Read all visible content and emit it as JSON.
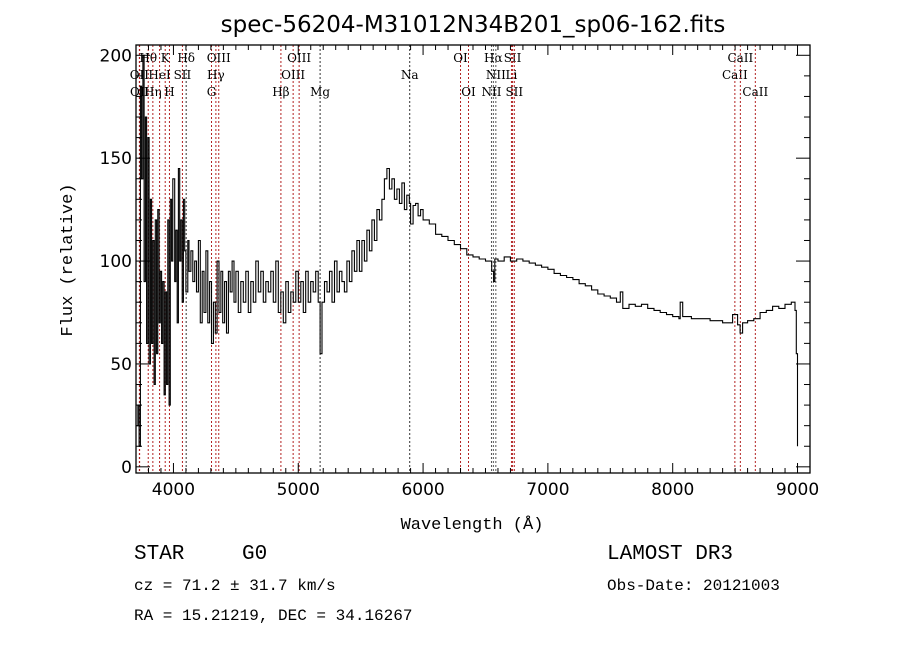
{
  "chart_data": {
    "type": "line",
    "title": "spec-56204-M31012N34B201_sp06-162.fits",
    "xlabel": "Wavelength (Å)",
    "ylabel": "Flux (relative)",
    "xlim": [
      3700,
      9100
    ],
    "ylim": [
      -3,
      205
    ],
    "xticks": [
      4000,
      5000,
      6000,
      7000,
      8000,
      9000
    ],
    "yticks": [
      0,
      50,
      100,
      150,
      200
    ],
    "grid": false,
    "spectrum": [
      [
        3705,
        20
      ],
      [
        3715,
        30
      ],
      [
        3725,
        10
      ],
      [
        3735,
        185
      ],
      [
        3745,
        140
      ],
      [
        3755,
        200
      ],
      [
        3765,
        90
      ],
      [
        3775,
        170
      ],
      [
        3785,
        60
      ],
      [
        3795,
        160
      ],
      [
        3805,
        50
      ],
      [
        3815,
        130
      ],
      [
        3825,
        60
      ],
      [
        3835,
        110
      ],
      [
        3845,
        40
      ],
      [
        3855,
        120
      ],
      [
        3865,
        55
      ],
      [
        3875,
        125
      ],
      [
        3885,
        70
      ],
      [
        3895,
        95
      ],
      [
        3905,
        60
      ],
      [
        3915,
        90
      ],
      [
        3925,
        35
      ],
      [
        3935,
        85
      ],
      [
        3945,
        40
      ],
      [
        3955,
        120
      ],
      [
        3965,
        30
      ],
      [
        3975,
        130
      ],
      [
        3985,
        100
      ],
      [
        3995,
        140
      ],
      [
        4010,
        90
      ],
      [
        4020,
        115
      ],
      [
        4030,
        70
      ],
      [
        4040,
        145
      ],
      [
        4050,
        100
      ],
      [
        4060,
        120
      ],
      [
        4070,
        80
      ],
      [
        4080,
        130
      ],
      [
        4090,
        105
      ],
      [
        4100,
        85
      ],
      [
        4115,
        110
      ],
      [
        4125,
        95
      ],
      [
        4140,
        105
      ],
      [
        4155,
        90
      ],
      [
        4170,
        100
      ],
      [
        4185,
        85
      ],
      [
        4200,
        110
      ],
      [
        4215,
        70
      ],
      [
        4230,
        95
      ],
      [
        4245,
        75
      ],
      [
        4260,
        105
      ],
      [
        4275,
        70
      ],
      [
        4290,
        90
      ],
      [
        4305,
        60
      ],
      [
        4320,
        80
      ],
      [
        4335,
        65
      ],
      [
        4350,
        100
      ],
      [
        4365,
        75
      ],
      [
        4380,
        95
      ],
      [
        4395,
        70
      ],
      [
        4410,
        90
      ],
      [
        4425,
        65
      ],
      [
        4440,
        95
      ],
      [
        4455,
        85
      ],
      [
        4470,
        100
      ],
      [
        4485,
        80
      ],
      [
        4500,
        95
      ],
      [
        4520,
        75
      ],
      [
        4540,
        90
      ],
      [
        4560,
        80
      ],
      [
        4580,
        95
      ],
      [
        4600,
        75
      ],
      [
        4620,
        90
      ],
      [
        4640,
        80
      ],
      [
        4660,
        100
      ],
      [
        4680,
        85
      ],
      [
        4700,
        95
      ],
      [
        4720,
        80
      ],
      [
        4740,
        90
      ],
      [
        4760,
        85
      ],
      [
        4780,
        95
      ],
      [
        4800,
        80
      ],
      [
        4820,
        100
      ],
      [
        4840,
        75
      ],
      [
        4860,
        85
      ],
      [
        4880,
        70
      ],
      [
        4900,
        90
      ],
      [
        4920,
        75
      ],
      [
        4940,
        85
      ],
      [
        4960,
        80
      ],
      [
        4980,
        95
      ],
      [
        5000,
        80
      ],
      [
        5020,
        90
      ],
      [
        5040,
        75
      ],
      [
        5060,
        95
      ],
      [
        5080,
        80
      ],
      [
        5100,
        90
      ],
      [
        5120,
        85
      ],
      [
        5140,
        95
      ],
      [
        5160,
        80
      ],
      [
        5175,
        55
      ],
      [
        5190,
        80
      ],
      [
        5210,
        90
      ],
      [
        5230,
        85
      ],
      [
        5250,
        95
      ],
      [
        5270,
        80
      ],
      [
        5290,
        100
      ],
      [
        5310,
        85
      ],
      [
        5330,
        95
      ],
      [
        5350,
        90
      ],
      [
        5370,
        85
      ],
      [
        5390,
        100
      ],
      [
        5410,
        90
      ],
      [
        5430,
        105
      ],
      [
        5450,
        95
      ],
      [
        5470,
        110
      ],
      [
        5490,
        95
      ],
      [
        5510,
        110
      ],
      [
        5530,
        100
      ],
      [
        5550,
        115
      ],
      [
        5570,
        105
      ],
      [
        5590,
        120
      ],
      [
        5610,
        110
      ],
      [
        5630,
        125
      ],
      [
        5650,
        120
      ],
      [
        5670,
        130
      ],
      [
        5690,
        140
      ],
      [
        5710,
        145
      ],
      [
        5730,
        135
      ],
      [
        5750,
        140
      ],
      [
        5770,
        130
      ],
      [
        5790,
        135
      ],
      [
        5810,
        128
      ],
      [
        5830,
        138
      ],
      [
        5850,
        125
      ],
      [
        5870,
        132
      ],
      [
        5890,
        128
      ],
      [
        5900,
        118
      ],
      [
        5920,
        127
      ],
      [
        5940,
        128
      ],
      [
        5960,
        122
      ],
      [
        5980,
        125
      ],
      [
        6000,
        120
      ],
      [
        6050,
        118
      ],
      [
        6100,
        113
      ],
      [
        6150,
        112
      ],
      [
        6200,
        110
      ],
      [
        6250,
        108
      ],
      [
        6300,
        106
      ],
      [
        6350,
        103
      ],
      [
        6400,
        102
      ],
      [
        6450,
        101
      ],
      [
        6500,
        100
      ],
      [
        6550,
        95
      ],
      [
        6565,
        90
      ],
      [
        6575,
        101
      ],
      [
        6600,
        100
      ],
      [
        6650,
        102
      ],
      [
        6700,
        100
      ],
      [
        6750,
        101
      ],
      [
        6800,
        100
      ],
      [
        6850,
        99
      ],
      [
        6900,
        98
      ],
      [
        6950,
        97
      ],
      [
        7000,
        96
      ],
      [
        7050,
        94
      ],
      [
        7100,
        93
      ],
      [
        7150,
        92
      ],
      [
        7200,
        91
      ],
      [
        7250,
        89
      ],
      [
        7300,
        88
      ],
      [
        7350,
        86
      ],
      [
        7400,
        84
      ],
      [
        7450,
        83
      ],
      [
        7500,
        82
      ],
      [
        7550,
        80
      ],
      [
        7580,
        85
      ],
      [
        7600,
        77
      ],
      [
        7650,
        79
      ],
      [
        7700,
        78
      ],
      [
        7750,
        79
      ],
      [
        7800,
        77
      ],
      [
        7850,
        76
      ],
      [
        7900,
        75
      ],
      [
        7950,
        74
      ],
      [
        8000,
        73
      ],
      [
        8050,
        72
      ],
      [
        8060,
        80
      ],
      [
        8080,
        73
      ],
      [
        8150,
        72
      ],
      [
        8200,
        72
      ],
      [
        8300,
        71
      ],
      [
        8400,
        70
      ],
      [
        8480,
        74
      ],
      [
        8520,
        69
      ],
      [
        8540,
        65
      ],
      [
        8560,
        70
      ],
      [
        8600,
        71
      ],
      [
        8650,
        72
      ],
      [
        8700,
        75
      ],
      [
        8750,
        76
      ],
      [
        8800,
        78
      ],
      [
        8850,
        77
      ],
      [
        8900,
        79
      ],
      [
        8950,
        80
      ],
      [
        8980,
        76
      ],
      [
        8990,
        55
      ],
      [
        9000,
        10
      ]
    ],
    "lines": [
      {
        "label": "OII",
        "wl": 3727,
        "row": 2,
        "color": "#b22222"
      },
      {
        "label": "OII",
        "wl": 3729,
        "row": 3,
        "color": "#b22222"
      },
      {
        "label": "Hθ",
        "wl": 3798,
        "row": 1,
        "color": "#b22222"
      },
      {
        "label": "Hη",
        "wl": 3835,
        "row": 3,
        "color": "#b22222"
      },
      {
        "label": "HeI",
        "wl": 3889,
        "row": 2,
        "color": "#b22222"
      },
      {
        "label": "K",
        "wl": 3934,
        "row": 1,
        "color": "#b22222"
      },
      {
        "label": "H",
        "wl": 3968,
        "row": 3,
        "color": "#b22222"
      },
      {
        "label": "SII",
        "wl": 4072,
        "row": 2,
        "color": "#b22222"
      },
      {
        "label": "Hδ",
        "wl": 4102,
        "row": 1,
        "color": "#333333"
      },
      {
        "label": "G",
        "wl": 4305,
        "row": 3,
        "color": "#b22222"
      },
      {
        "label": "Hγ",
        "wl": 4340,
        "row": 2,
        "color": "#b22222"
      },
      {
        "label": "OIII",
        "wl": 4363,
        "row": 1,
        "color": "#b22222"
      },
      {
        "label": "Hβ",
        "wl": 4861,
        "row": 3,
        "color": "#b22222"
      },
      {
        "label": "OIII",
        "wl": 4959,
        "row": 2,
        "color": "#b22222"
      },
      {
        "label": "OIII",
        "wl": 5007,
        "row": 1,
        "color": "#b22222"
      },
      {
        "label": "Mg",
        "wl": 5175,
        "row": 3,
        "color": "#333333"
      },
      {
        "label": "Na",
        "wl": 5893,
        "row": 2,
        "color": "#333333"
      },
      {
        "label": "OI",
        "wl": 6300,
        "row": 1,
        "color": "#b22222"
      },
      {
        "label": "OI",
        "wl": 6364,
        "row": 3,
        "color": "#b22222"
      },
      {
        "label": "NII",
        "wl": 6548,
        "row": 3,
        "color": "#555555"
      },
      {
        "label": "Hα",
        "wl": 6563,
        "row": 1,
        "color": "#555555"
      },
      {
        "label": "NII",
        "wl": 6583,
        "row": 2,
        "color": "#555555"
      },
      {
        "label": "Li",
        "wl": 6708,
        "row": 2,
        "color": "#b22222"
      },
      {
        "label": "SII",
        "wl": 6717,
        "row": 1,
        "color": "#b22222"
      },
      {
        "label": "SII",
        "wl": 6731,
        "row": 3,
        "color": "#b22222"
      },
      {
        "label": "CaII",
        "wl": 8498,
        "row": 2,
        "color": "#b22222"
      },
      {
        "label": "CaII",
        "wl": 8542,
        "row": 1,
        "color": "#b22222"
      },
      {
        "label": "CaII",
        "wl": 8662,
        "row": 3,
        "color": "#b22222"
      }
    ]
  },
  "info": {
    "class": "STAR",
    "subclass": "G0",
    "survey": "LAMOST DR3",
    "cz": "cz = 71.2 ± 31.7 km/s",
    "obs_date": "Obs-Date: 20121003",
    "coords": "RA =  15.21219, DEC =  34.16267"
  }
}
